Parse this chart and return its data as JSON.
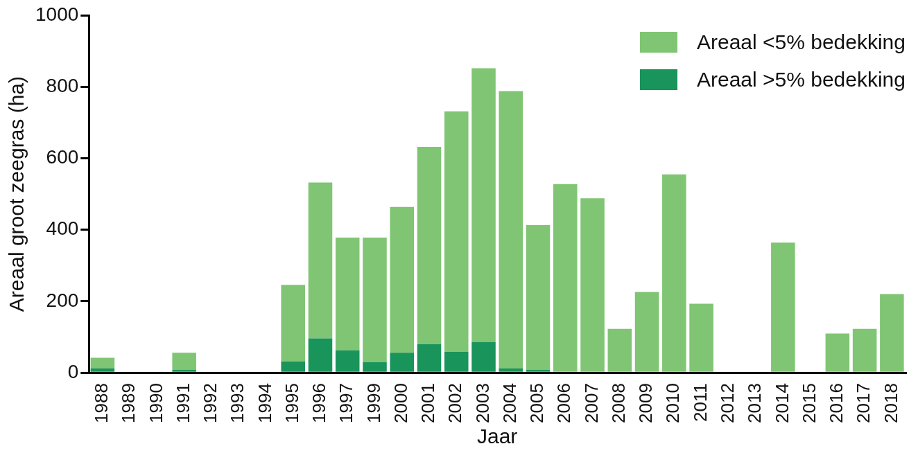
{
  "chart_data": {
    "type": "bar",
    "stacked": true,
    "xlabel": "Jaar",
    "ylabel": "Areaal groot zeegras (ha)",
    "categories": [
      "1988",
      "1989",
      "1990",
      "1991",
      "1992",
      "1993",
      "1994",
      "1995",
      "1996",
      "1997",
      "1999",
      "2000",
      "2001",
      "2002",
      "2003",
      "2004",
      "2005",
      "2006",
      "2007",
      "2008",
      "2009",
      "2010",
      "2011",
      "2012",
      "2013",
      "2014",
      "2015",
      "2016",
      "2017",
      "2018"
    ],
    "series": [
      {
        "name": "Areaal >5% bedekking",
        "color": "#19945a",
        "values": [
          12,
          0,
          0,
          8,
          0,
          0,
          0,
          32,
          96,
          63,
          30,
          56,
          80,
          59,
          86,
          12,
          8,
          0,
          0,
          0,
          0,
          0,
          0,
          0,
          0,
          0,
          0,
          0,
          0,
          0
        ]
      },
      {
        "name": "Areaal <5% bedekking",
        "color": "#80c573",
        "values": [
          30,
          0,
          0,
          48,
          0,
          0,
          0,
          214,
          436,
          315,
          348,
          408,
          552,
          672,
          766,
          776,
          405,
          528,
          488,
          123,
          226,
          555,
          193,
          0,
          0,
          364,
          0,
          110,
          123,
          220
        ]
      }
    ],
    "ylim": [
      0,
      1000
    ],
    "yticks": [
      0,
      200,
      400,
      600,
      800,
      1000
    ],
    "grid": false,
    "legend": "top right"
  }
}
